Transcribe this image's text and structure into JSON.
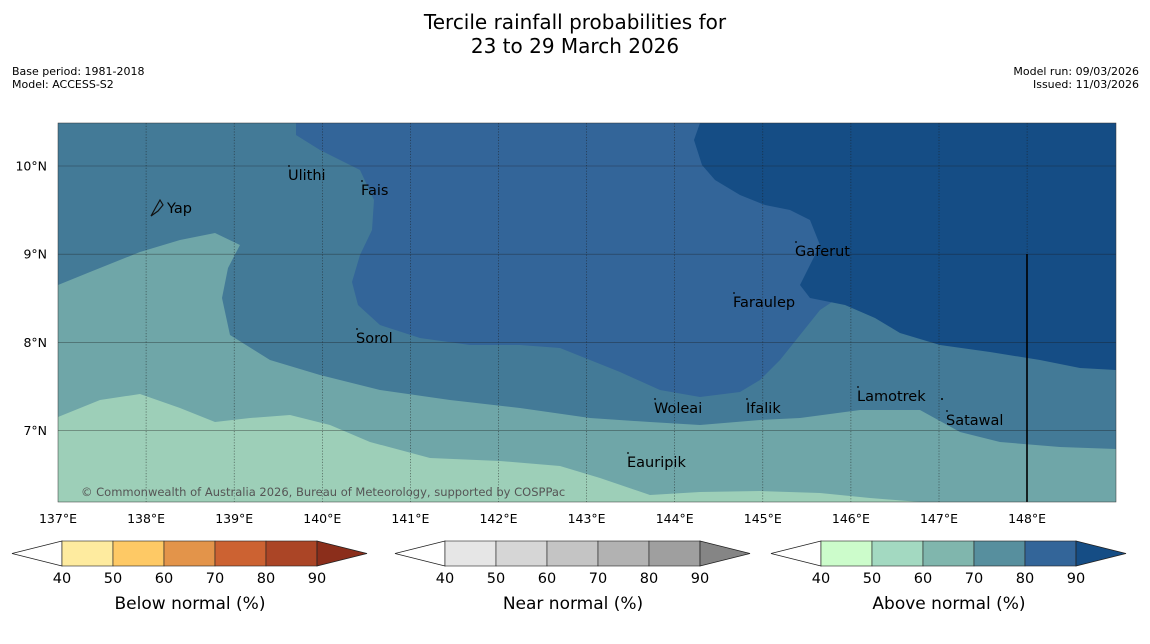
{
  "header": {
    "title_line1": "Tercile rainfall probabilities for",
    "title_line2": "23 to 29 March 2026",
    "base_period": "Base period: 1981-2018",
    "model": "Model: ACCESS-S2",
    "model_run": "Model run: 09/03/2026",
    "issued": "Issued: 11/03/2026"
  },
  "map": {
    "lon_labels": [
      "137°E",
      "138°E",
      "139°E",
      "140°E",
      "141°E",
      "142°E",
      "143°E",
      "144°E",
      "145°E",
      "146°E",
      "147°E",
      "148°E"
    ],
    "lat_labels": [
      "10°N",
      "9°N",
      "8°N",
      "7°N"
    ],
    "places": [
      {
        "name": "Yap"
      },
      {
        "name": "Ulithi"
      },
      {
        "name": "Fais"
      },
      {
        "name": "Gaferut"
      },
      {
        "name": "Faraulep"
      },
      {
        "name": "Sorol"
      },
      {
        "name": "Lamotrek"
      },
      {
        "name": "Woleai"
      },
      {
        "name": "Ifalik"
      },
      {
        "name": "Satawal"
      },
      {
        "name": "Eauripik"
      }
    ],
    "credit": "© Commonwealth of Australia 2026, Bureau of Meteorology, supported by COSPPac",
    "probability_colors": [
      "#9dcfb8",
      "#6fa6a8",
      "#437a97",
      "#336599",
      "#154d85"
    ]
  },
  "colorbars": [
    {
      "label": "Below normal (%)",
      "ticks": [
        "40",
        "50",
        "60",
        "70",
        "80",
        "90"
      ],
      "colors": [
        "#ffffff",
        "#feeb9f",
        "#fec965",
        "#e3944a",
        "#cc6232",
        "#ab4526",
        "#8b2e1b"
      ]
    },
    {
      "label": "Near normal (%)",
      "ticks": [
        "40",
        "50",
        "60",
        "70",
        "80",
        "90"
      ],
      "colors": [
        "#ffffff",
        "#e6e6e6",
        "#d6d6d6",
        "#c4c4c4",
        "#b2b2b2",
        "#9f9f9f",
        "#858585"
      ]
    },
    {
      "label": "Above normal (%)",
      "ticks": [
        "40",
        "50",
        "60",
        "70",
        "80",
        "90"
      ],
      "colors": [
        "#ffffff",
        "#ccfccb",
        "#a3d9c1",
        "#80b6ad",
        "#578f9e",
        "#336599",
        "#154d85"
      ]
    }
  ]
}
